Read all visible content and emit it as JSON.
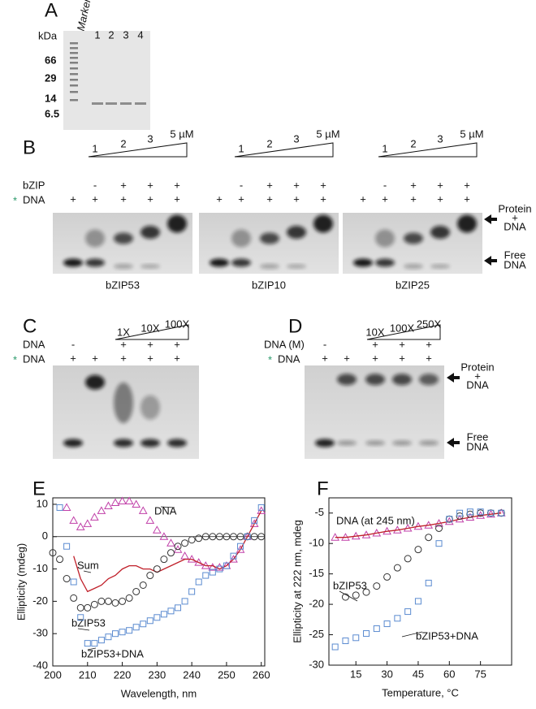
{
  "panels": {
    "A": {
      "letter": "A",
      "unit": "kDa",
      "marker": "Marker",
      "lanes": [
        "1",
        "2",
        "3",
        "4"
      ],
      "sizes": [
        "66",
        "29",
        "14",
        "6.5"
      ]
    },
    "B": {
      "letter": "B",
      "row_labels": {
        "protein": "bZIP",
        "asterisk": "*",
        "dna": "DNA"
      },
      "gels": [
        {
          "name": "bZIP53",
          "concentrations": [
            "1",
            "2",
            "3",
            "5 µM"
          ],
          "protein": [
            null,
            "-",
            "+",
            "+",
            "+"
          ],
          "dna": [
            "+",
            "+",
            "+",
            "+",
            "+"
          ]
        },
        {
          "name": "bZIP10",
          "concentrations": [
            "1",
            "2",
            "3",
            "5 µM"
          ],
          "protein": [
            null,
            "-",
            "+",
            "+",
            "+"
          ],
          "dna": [
            "+",
            "+",
            "+",
            "+",
            "+"
          ]
        },
        {
          "name": "bZIP25",
          "concentrations": [
            "1",
            "2",
            "3",
            "5 µM"
          ],
          "protein": [
            null,
            "-",
            "+",
            "+",
            "+"
          ],
          "dna": [
            "+",
            "+",
            "+",
            "+",
            "+"
          ]
        }
      ],
      "arrow_labels": {
        "complex": [
          "Protein",
          "+",
          "DNA"
        ],
        "free": [
          "Free",
          "DNA"
        ]
      }
    },
    "C": {
      "letter": "C",
      "ratios": [
        "1X",
        "10X",
        "100X"
      ],
      "row_labels": {
        "competitor": "DNA",
        "asterisk": "*",
        "dna": "DNA"
      },
      "competitor": [
        "-",
        null,
        "+",
        "+",
        "+"
      ],
      "dna": [
        "+",
        "+",
        "+",
        "+",
        "+"
      ]
    },
    "D": {
      "letter": "D",
      "ratios": [
        "10X",
        "100X",
        "250X"
      ],
      "row_labels": {
        "competitor": "DNA (M)",
        "asterisk": "*",
        "dna": "DNA"
      },
      "competitor": [
        "-",
        null,
        "+",
        "+",
        "+"
      ],
      "dna": [
        "+",
        "+",
        "+",
        "+",
        "+"
      ],
      "arrow_labels": {
        "complex": [
          "Protein",
          "+",
          "DNA"
        ],
        "free": [
          "Free",
          "DNA"
        ]
      }
    }
  },
  "chart_data": [
    {
      "type": "scatter",
      "panel": "E",
      "xlabel": "Wavelength, nm",
      "ylabel": "Ellipticity (mdeg)",
      "x": [
        200,
        202,
        204,
        206,
        208,
        210,
        212,
        214,
        216,
        218,
        220,
        222,
        224,
        226,
        228,
        230,
        232,
        234,
        236,
        238,
        240,
        242,
        244,
        246,
        248,
        250,
        252,
        254,
        256,
        258,
        260
      ],
      "series": [
        {
          "name": "DNA",
          "color": "#c03fa8",
          "marker": "triangle",
          "values": [
            null,
            null,
            9,
            5,
            3,
            4,
            6,
            8,
            9.5,
            10.5,
            11,
            11,
            10,
            8,
            5,
            2,
            0,
            -2,
            -4,
            -6,
            -7,
            -8,
            -9,
            -9.5,
            -9.5,
            -9,
            -7,
            -4,
            0,
            4,
            8
          ]
        },
        {
          "name": "Sum",
          "color": "#c0202a",
          "marker": "line",
          "values": [
            null,
            null,
            null,
            -6,
            -13,
            -17,
            -16,
            -15,
            -13,
            -12,
            -10,
            -9,
            -9,
            -10,
            -10,
            -11,
            -10,
            -9,
            -8,
            -7,
            -7,
            -8,
            -9,
            -9,
            -10,
            -9,
            -7,
            -4,
            0,
            4,
            8
          ]
        },
        {
          "name": "bZIP53",
          "color": "#333333",
          "marker": "circle",
          "values": [
            -5,
            -7,
            -13,
            -19,
            -22,
            -22,
            -21,
            -20,
            -20,
            -20.5,
            -20,
            -19,
            -17,
            -15,
            -12,
            -10,
            -7,
            -5,
            -3,
            -2,
            -1,
            -0.5,
            0,
            0,
            0,
            0,
            0,
            0,
            0,
            0,
            0
          ]
        },
        {
          "name": "bZIP53+DNA",
          "color": "#5b8bd0",
          "marker": "square",
          "values": [
            null,
            9,
            -3,
            -14,
            -25,
            -33,
            -33,
            -32,
            -31,
            -30,
            -29.5,
            -29,
            -28,
            -27,
            -26,
            -25,
            -24,
            -23,
            -22,
            -20,
            -17,
            -14,
            -12,
            -11,
            -10,
            -9,
            -6,
            -3,
            0,
            5,
            9
          ]
        }
      ],
      "xlim": [
        200,
        261
      ],
      "ylim": [
        -40,
        12
      ],
      "xticks": [
        200,
        210,
        220,
        230,
        240,
        250,
        260
      ],
      "yticks": [
        -40,
        -30,
        -20,
        -10,
        0,
        10
      ],
      "zero_line": true
    },
    {
      "type": "scatter",
      "panel": "F",
      "xlabel": "Temperature, °C",
      "ylabel": "Ellipticity at 222 nm, mdeg",
      "x": [
        5,
        10,
        15,
        20,
        25,
        30,
        35,
        40,
        45,
        50,
        55,
        60,
        65,
        70,
        75,
        80,
        85
      ],
      "series": [
        {
          "name": "DNA (at 245 nm)",
          "color": "#c03fa8",
          "marker": "triangle",
          "line_color": "#c0202a",
          "values": [
            -9,
            -9,
            -8.8,
            -8.6,
            -8.3,
            -8,
            -7.8,
            -7.5,
            -7.2,
            -7,
            -6.7,
            -6.4,
            -6,
            -5.7,
            -5.4,
            -5.2,
            -5
          ]
        },
        {
          "name": "bZIP53",
          "color": "#333333",
          "marker": "circle",
          "values": [
            null,
            -18.8,
            -18.5,
            -18,
            -17,
            -15.5,
            -14,
            -12.5,
            -11,
            -9,
            -7.5,
            -6,
            -5.5,
            -5.2,
            -5,
            -5,
            -5
          ]
        },
        {
          "name": "bZIP53+DNA",
          "color": "#5b8bd0",
          "marker": "square",
          "values": [
            -27,
            -26,
            -25.5,
            -24.8,
            -24,
            -23.2,
            -22.3,
            -21.2,
            -19.5,
            -16.5,
            -10,
            -6,
            -5,
            -4.8,
            -4.8,
            -5,
            -5
          ]
        }
      ],
      "xlim": [
        2,
        90
      ],
      "ylim": [
        -30,
        -2.5
      ],
      "xticks": [
        15,
        30,
        45,
        60,
        75
      ],
      "yticks": [
        -30,
        -25,
        -20,
        -15,
        -10,
        -5
      ],
      "zero_line": false
    }
  ]
}
